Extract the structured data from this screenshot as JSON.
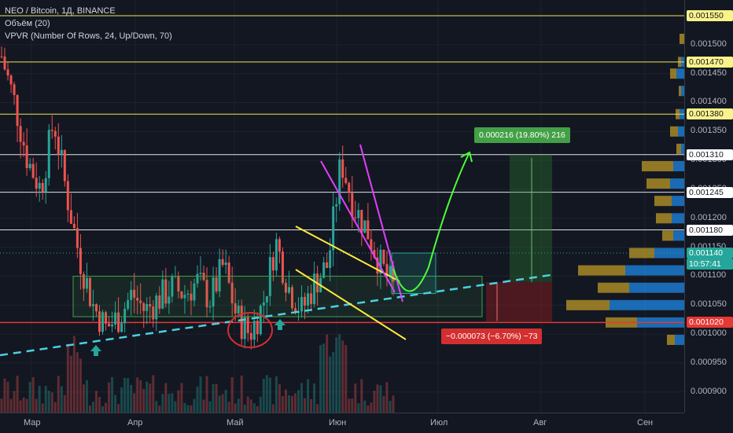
{
  "legend": {
    "symbol": "NEO / Bitcoin, 1Д, BINANCE",
    "volume": "Объём (20)",
    "vpvr": "VPVR (Number Of Rows, 24, Up/Down, 70)"
  },
  "colors": {
    "background": "#131722",
    "up": "#26a69a",
    "down": "#ef5350",
    "yellow_level": "#e9e55c",
    "white_level": "#e0e3eb",
    "red_level": "#e53935",
    "trend": "#4dd0e1",
    "magenta": "#e040fb",
    "target_box": "#4caf50",
    "stop_box": "#c62828"
  },
  "price_axis": {
    "ticks": [
      "0.001500",
      "0.001450",
      "0.001400",
      "0.001350",
      "0.001300",
      "0.001250",
      "0.001200",
      "0.001150",
      "0.001100",
      "0.001050",
      "0.001000",
      "0.000950",
      "0.000900"
    ],
    "levels": [
      {
        "value": 0.00155,
        "label": "0.001550",
        "kind": "yellow"
      },
      {
        "value": 0.00147,
        "label": "0.001470",
        "kind": "yellow"
      },
      {
        "value": 0.00138,
        "label": "0.001380",
        "kind": "yellow"
      },
      {
        "value": 0.00131,
        "label": "0.001310",
        "kind": "white"
      },
      {
        "value": 0.001245,
        "label": "0.001245",
        "kind": "white"
      },
      {
        "value": 0.00118,
        "label": "0.001180",
        "kind": "white"
      },
      {
        "value": 0.00102,
        "label": "0.001020",
        "kind": "red"
      }
    ],
    "current_price": "0.001140",
    "countdown": "10:57:41"
  },
  "time_axis": {
    "labels": [
      "Мар",
      "Апр",
      "Май",
      "Июн",
      "Июл",
      "Авг",
      "Сен"
    ]
  },
  "annotations": {
    "target_label": "0.000216 (19.80%) 216",
    "stop_label": "−0.000073 (−6.70%) −73"
  },
  "chart_data": {
    "type": "candlestick",
    "symbol": "NEO / Bitcoin",
    "interval": "1Д",
    "exchange": "BINANCE",
    "y_range": [
      0.00087,
      0.00159
    ],
    "series": [
      {
        "name": "NEO / Bitcoin",
        "approx_close_path": [
          0.00148,
          0.0014,
          0.0013,
          0.00125,
          0.00137,
          0.00124,
          0.00113,
          0.00105,
          0.00101,
          0.00103,
          0.00107,
          0.00104,
          0.00106,
          0.00108,
          0.00107,
          0.00109,
          0.00106,
          0.00112,
          0.00103,
          0.001,
          0.00105,
          0.00116,
          0.00108,
          0.00104,
          0.00109,
          0.00112,
          0.0013,
          0.00122,
          0.00118,
          0.00112,
          0.00108
        ]
      }
    ]
  }
}
